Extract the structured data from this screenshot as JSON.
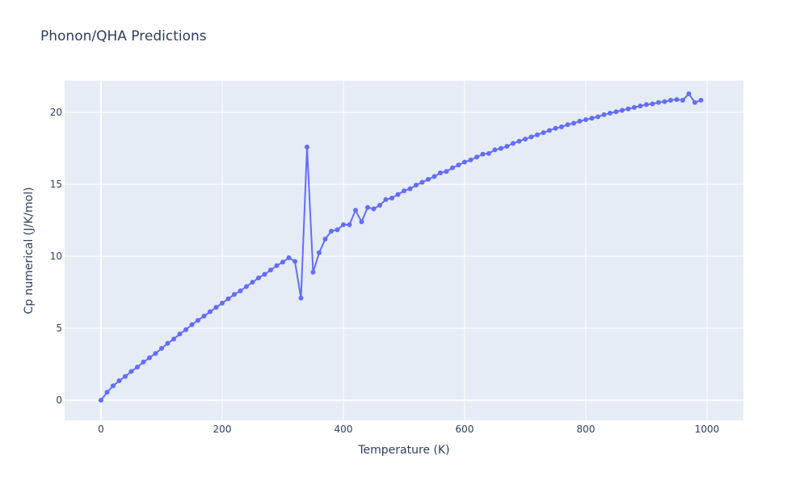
{
  "chart_data": {
    "type": "line",
    "title": "Phonon/QHA Predictions",
    "xlabel": "Temperature (K)",
    "ylabel": "Cp numerical (J/K/mol)",
    "xlim": [
      -60,
      1060
    ],
    "ylim": [
      -1.4,
      22.2
    ],
    "x_ticks": [
      0,
      200,
      400,
      600,
      800,
      1000
    ],
    "y_ticks": [
      0,
      5,
      10,
      15,
      20
    ],
    "grid": true,
    "color": "#636efa",
    "mode": "lines+markers",
    "series": [
      {
        "x": [
          0,
          10,
          20,
          30,
          40,
          50,
          60,
          70,
          80,
          90,
          100,
          110,
          120,
          130,
          140,
          150,
          160,
          170,
          180,
          190,
          200,
          210,
          220,
          230,
          240,
          250,
          260,
          270,
          280,
          290,
          300,
          310,
          320,
          330,
          340,
          350,
          360,
          370,
          380,
          390,
          400,
          410,
          420,
          430,
          440,
          450,
          460,
          470,
          480,
          490,
          500,
          510,
          520,
          530,
          540,
          550,
          560,
          570,
          580,
          590,
          600,
          610,
          620,
          630,
          640,
          650,
          660,
          670,
          680,
          690,
          700,
          710,
          720,
          730,
          740,
          750,
          760,
          770,
          780,
          790,
          800,
          810,
          820,
          830,
          840,
          850,
          860,
          870,
          880,
          890,
          900,
          910,
          920,
          930,
          940,
          950,
          960,
          970,
          980,
          990
        ],
        "y": [
          0,
          0.55,
          1.0,
          1.35,
          1.65,
          2.0,
          2.3,
          2.65,
          2.95,
          3.25,
          3.6,
          3.95,
          4.25,
          4.6,
          4.9,
          5.25,
          5.55,
          5.85,
          6.15,
          6.45,
          6.75,
          7.05,
          7.35,
          7.6,
          7.9,
          8.2,
          8.5,
          8.75,
          9.05,
          9.35,
          9.6,
          9.9,
          9.65,
          7.1,
          17.6,
          8.9,
          10.25,
          11.2,
          11.75,
          11.85,
          12.2,
          12.2,
          13.2,
          12.4,
          13.4,
          13.3,
          13.55,
          13.95,
          14.05,
          14.3,
          14.55,
          14.7,
          14.95,
          15.15,
          15.35,
          15.55,
          15.8,
          15.9,
          16.15,
          16.35,
          16.55,
          16.7,
          16.9,
          17.1,
          17.15,
          17.4,
          17.5,
          17.65,
          17.85,
          18.0,
          18.15,
          18.3,
          18.45,
          18.6,
          18.75,
          18.9,
          19.0,
          19.15,
          19.25,
          19.4,
          19.5,
          19.6,
          19.7,
          19.85,
          19.95,
          20.05,
          20.15,
          20.25,
          20.35,
          20.45,
          20.55,
          20.6,
          20.7,
          20.75,
          20.85,
          20.9,
          20.85,
          21.3,
          20.7,
          20.85
        ]
      }
    ]
  }
}
